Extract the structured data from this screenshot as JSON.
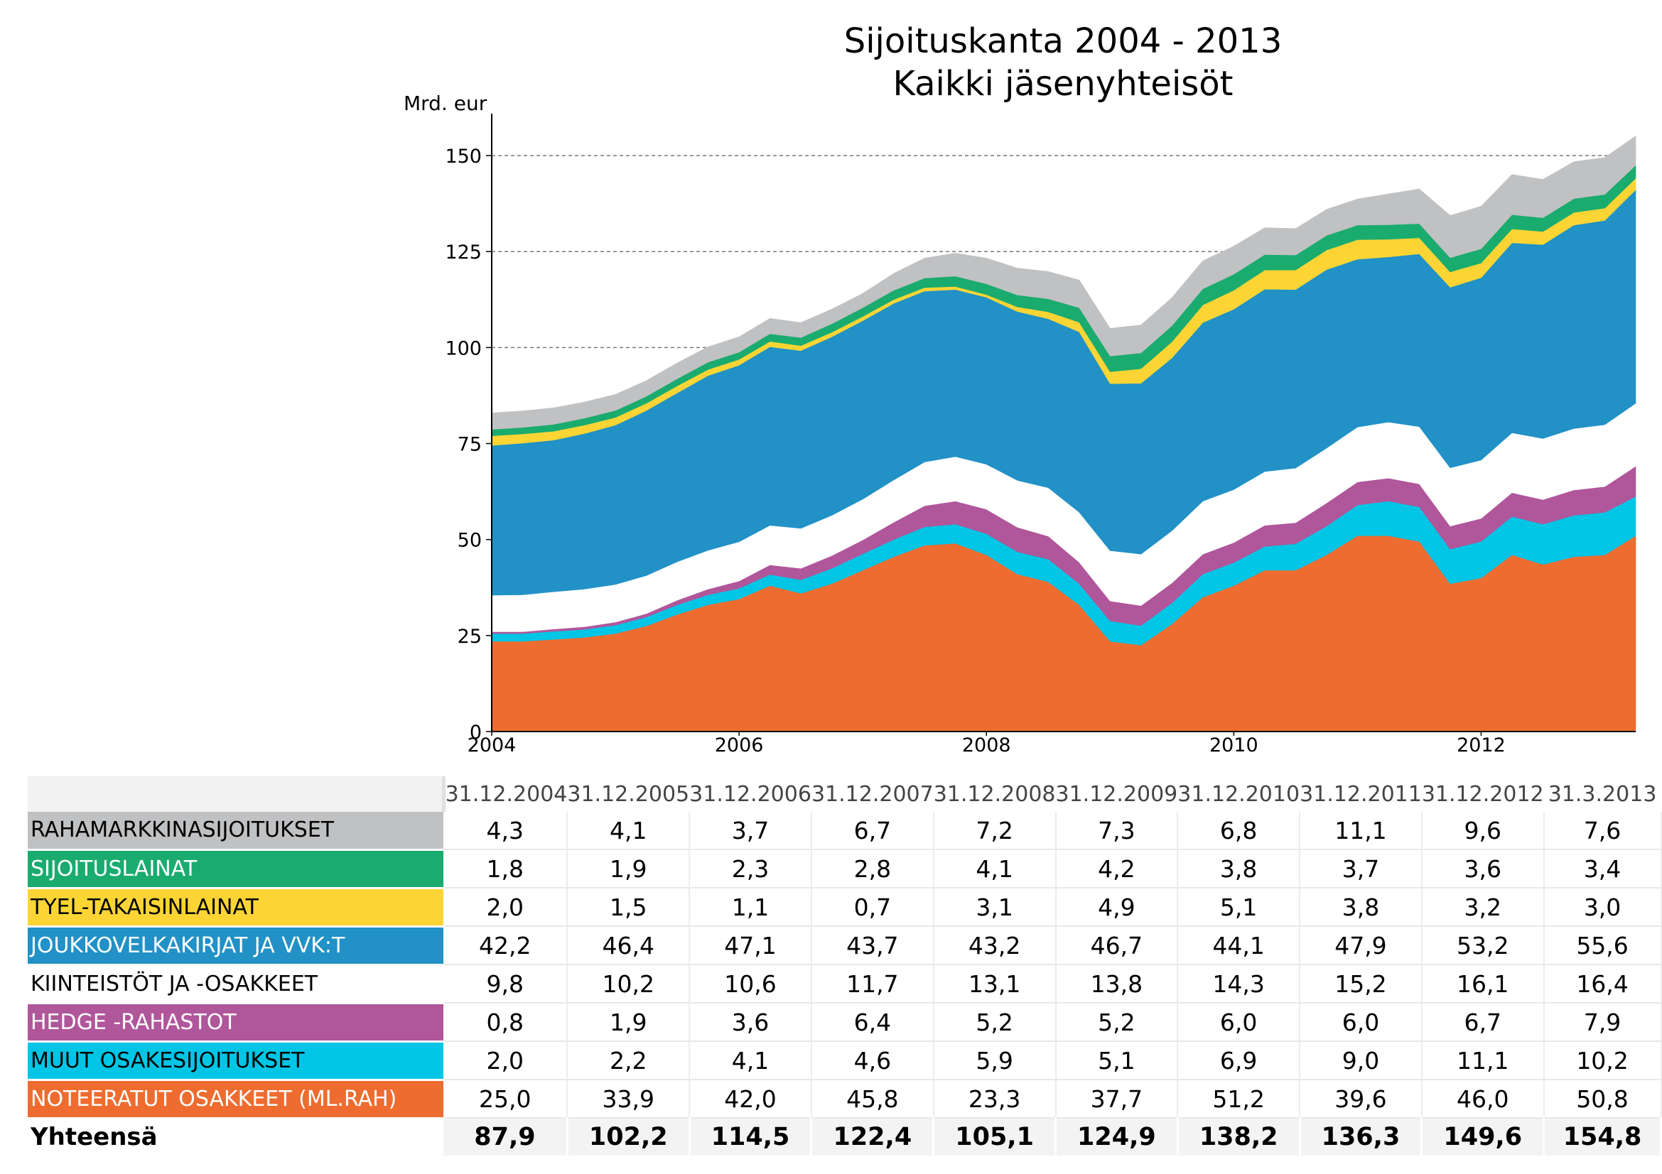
{
  "chart_data": {
    "type": "area",
    "title": "Sijoituskanta 2004 - 2013",
    "subtitle": "Kaikki jäsenyhteisöt",
    "ylabel": "Mrd. eur",
    "ylim": [
      0,
      160
    ],
    "yticks": [
      0,
      25,
      50,
      75,
      100,
      125,
      150
    ],
    "xlim": [
      2004,
      2013.25
    ],
    "xticks": [
      2004,
      2006,
      2008,
      2010,
      2012
    ],
    "grid": "horizontal dashed at 100, 125, 150",
    "legend": "table below chart",
    "x": [
      2004.0,
      2004.25,
      2004.5,
      2004.75,
      2005.0,
      2005.25,
      2005.5,
      2005.75,
      2006.0,
      2006.25,
      2006.5,
      2006.75,
      2007.0,
      2007.25,
      2007.5,
      2007.75,
      2008.0,
      2008.25,
      2008.5,
      2008.75,
      2009.0,
      2009.25,
      2009.5,
      2009.75,
      2010.0,
      2010.25,
      2010.5,
      2010.75,
      2011.0,
      2011.25,
      2011.5,
      2011.75,
      2012.0,
      2012.25,
      2012.5,
      2012.75,
      2013.0,
      2013.25
    ],
    "series": [
      {
        "name": "NOTEERATUT OSAKKEET (ML.RAH)",
        "color": "#ee6c30",
        "values": [
          23.5,
          23.5,
          24.0,
          24.5,
          25.5,
          27.5,
          30.5,
          33.0,
          34.5,
          38.0,
          36.0,
          38.5,
          42.0,
          45.5,
          48.5,
          49.0,
          46.0,
          41.0,
          39.0,
          33.0,
          23.5,
          22.5,
          28.0,
          35.0,
          38.0,
          42.0,
          42.0,
          46.0,
          51.0,
          51.0,
          49.5,
          38.5,
          40.0,
          46.0,
          43.5,
          45.5,
          46.0,
          51.0
        ]
      },
      {
        "name": "MUUT OSAKESIJOITUKSET",
        "color": "#00c5e5",
        "values": [
          2.0,
          2.0,
          2.1,
          2.1,
          2.2,
          2.3,
          2.5,
          2.6,
          2.8,
          2.9,
          3.5,
          4.0,
          4.3,
          4.5,
          4.8,
          5.0,
          5.5,
          5.8,
          5.9,
          5.5,
          5.3,
          5.1,
          5.5,
          6.0,
          6.0,
          6.2,
          6.9,
          7.5,
          8.0,
          9.0,
          9.0,
          9.0,
          9.5,
          10.0,
          10.5,
          10.8,
          11.1,
          10.2
        ]
      },
      {
        "name": "HEDGE -RAHASTOT",
        "color": "#b0569b",
        "values": [
          0.5,
          0.5,
          0.6,
          0.7,
          0.8,
          0.9,
          1.2,
          1.5,
          1.9,
          2.5,
          3.0,
          3.3,
          3.6,
          4.5,
          5.5,
          6.0,
          6.4,
          6.4,
          6.0,
          5.6,
          5.2,
          5.2,
          5.2,
          5.2,
          5.2,
          5.5,
          5.5,
          6.0,
          6.0,
          6.0,
          6.0,
          6.0,
          6.0,
          6.2,
          6.4,
          6.6,
          6.7,
          7.9
        ]
      },
      {
        "name": "KIINTEISTÖT JA -OSAKKEET",
        "color": "#ffffff",
        "values": [
          9.5,
          9.6,
          9.7,
          9.8,
          9.8,
          9.9,
          10.0,
          10.1,
          10.2,
          10.3,
          10.4,
          10.5,
          10.6,
          11.0,
          11.4,
          11.6,
          11.7,
          12.2,
          12.6,
          13.0,
          13.1,
          13.4,
          13.6,
          13.8,
          13.8,
          14.0,
          14.2,
          14.3,
          14.3,
          14.6,
          14.9,
          15.2,
          15.2,
          15.6,
          15.9,
          16.0,
          16.1,
          16.4
        ]
      },
      {
        "name": "JOUKKOVELKAKIRJAT JA VVK:T",
        "color": "#2191c6",
        "values": [
          39.0,
          39.5,
          39.5,
          40.5,
          41.5,
          43.0,
          44.0,
          45.5,
          46.0,
          46.5,
          46.3,
          46.5,
          46.5,
          46.0,
          44.5,
          43.5,
          43.5,
          44.0,
          44.0,
          47.0,
          43.5,
          44.5,
          45.0,
          46.5,
          47.0,
          47.5,
          46.5,
          46.5,
          43.7,
          43.0,
          45.0,
          47.0,
          47.5,
          49.5,
          50.5,
          53.0,
          53.2,
          55.6
        ]
      },
      {
        "name": "TYEL-TAKAISINLAINAT",
        "color": "#fcd535",
        "values": [
          2.5,
          2.4,
          2.3,
          2.2,
          2.0,
          1.9,
          1.8,
          1.6,
          1.5,
          1.4,
          1.3,
          1.2,
          1.1,
          1.0,
          0.9,
          0.8,
          0.7,
          1.2,
          1.8,
          2.5,
          3.1,
          3.8,
          4.2,
          4.6,
          4.9,
          5.0,
          5.1,
          5.1,
          5.1,
          4.6,
          4.2,
          4.0,
          3.8,
          3.6,
          3.4,
          3.3,
          3.2,
          3.0
        ]
      },
      {
        "name": "SIJOITUSLAINAT",
        "color": "#1aab6f",
        "values": [
          1.7,
          1.7,
          1.8,
          1.8,
          1.8,
          1.8,
          1.9,
          1.9,
          1.9,
          2.0,
          2.1,
          2.2,
          2.3,
          2.4,
          2.5,
          2.7,
          2.8,
          3.1,
          3.4,
          3.8,
          4.1,
          4.1,
          4.2,
          4.2,
          4.2,
          4.0,
          3.9,
          3.8,
          3.8,
          3.8,
          3.7,
          3.7,
          3.7,
          3.7,
          3.6,
          3.6,
          3.6,
          3.4
        ]
      },
      {
        "name": "RAHAMARKKINASIJOITUKSET",
        "color": "#c0c1c3",
        "values": [
          4.3,
          4.3,
          4.3,
          4.2,
          4.2,
          4.1,
          4.1,
          4.0,
          4.0,
          4.0,
          3.9,
          3.8,
          3.7,
          4.4,
          5.2,
          6.0,
          6.7,
          7.0,
          7.1,
          7.2,
          7.2,
          7.3,
          7.3,
          7.3,
          7.3,
          7.0,
          6.9,
          6.8,
          6.8,
          8.0,
          9.0,
          11.0,
          11.1,
          10.5,
          10.0,
          9.6,
          9.6,
          7.6
        ]
      }
    ],
    "table": {
      "columns": [
        "31.12.2004",
        "31.12.2005",
        "31.12.2006",
        "31.12.2007",
        "31.12.2008",
        "31.12.2009",
        "31.12.2010",
        "31.12.2011",
        "31.12.2012",
        "31.3.2013"
      ],
      "rows": [
        {
          "label": "RAHAMARKKINASIJOITUKSET",
          "color": "#c0c1c3",
          "text_color": "#000000",
          "values": [
            "4,3",
            "4,1",
            "3,7",
            "6,7",
            "7,2",
            "7,3",
            "6,8",
            "11,1",
            "9,6",
            "7,6"
          ]
        },
        {
          "label": "SIJOITUSLAINAT",
          "color": "#1aab6f",
          "text_color": "#ffffff",
          "values": [
            "1,8",
            "1,9",
            "2,3",
            "2,8",
            "4,1",
            "4,2",
            "3,8",
            "3,7",
            "3,6",
            "3,4"
          ]
        },
        {
          "label": "TYEL-TAKAISINLAINAT",
          "color": "#fcd535",
          "text_color": "#000000",
          "values": [
            "2,0",
            "1,5",
            "1,1",
            "0,7",
            "3,1",
            "4,9",
            "5,1",
            "3,8",
            "3,2",
            "3,0"
          ]
        },
        {
          "label": "JOUKKOVELKAKIRJAT JA VVK:T",
          "color": "#2191c6",
          "text_color": "#ffffff",
          "values": [
            "42,2",
            "46,4",
            "47,1",
            "43,7",
            "43,2",
            "46,7",
            "44,1",
            "47,9",
            "53,2",
            "55,6"
          ]
        },
        {
          "label": "KIINTEISTÖT JA -OSAKKEET",
          "color": "#ffffff",
          "text_color": "#000000",
          "values": [
            "9,8",
            "10,2",
            "10,6",
            "11,7",
            "13,1",
            "13,8",
            "14,3",
            "15,2",
            "16,1",
            "16,4"
          ]
        },
        {
          "label": "HEDGE -RAHASTOT",
          "color": "#b0569b",
          "text_color": "#ffffff",
          "values": [
            "0,8",
            "1,9",
            "3,6",
            "6,4",
            "5,2",
            "5,2",
            "6,0",
            "6,0",
            "6,7",
            "7,9"
          ]
        },
        {
          "label": "MUUT OSAKESIJOITUKSET",
          "color": "#00c5e5",
          "text_color": "#000000",
          "values": [
            "2,0",
            "2,2",
            "4,1",
            "4,6",
            "5,9",
            "5,1",
            "6,9",
            "9,0",
            "11,1",
            "10,2"
          ]
        },
        {
          "label": "NOTEERATUT OSAKKEET (ML.RAH)",
          "color": "#ee6c30",
          "text_color": "#ffffff",
          "values": [
            "25,0",
            "33,9",
            "42,0",
            "45,8",
            "23,3",
            "37,7",
            "51,2",
            "39,6",
            "46,0",
            "50,8"
          ]
        }
      ],
      "total": {
        "label": "Yhteensä",
        "values": [
          "87,9",
          "102,2",
          "114,5",
          "122,4",
          "105,1",
          "124,9",
          "138,2",
          "136,3",
          "149,6",
          "154,8"
        ]
      }
    }
  }
}
